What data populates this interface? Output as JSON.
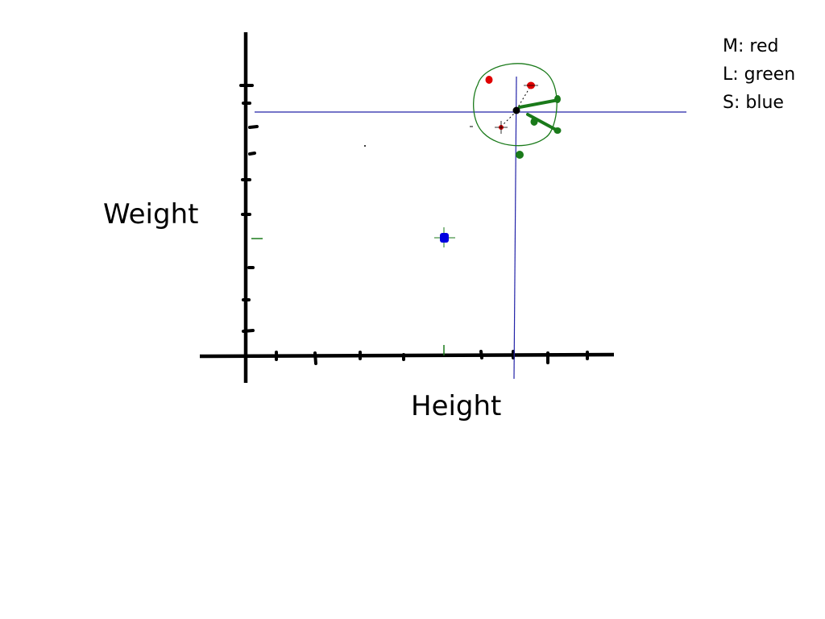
{
  "axes": {
    "x_label": "Height",
    "y_label": "Weight"
  },
  "legend": [
    {
      "label": "M: red",
      "color": "#e00000"
    },
    {
      "label": "L: green",
      "color": "#1a7a1a"
    },
    {
      "label": "S: blue",
      "color": "#0000e0"
    }
  ],
  "colors": {
    "axis": "#000000",
    "crosshair": "#2323a8",
    "circle": "#1a7a1a",
    "query_point": "#000000"
  }
}
